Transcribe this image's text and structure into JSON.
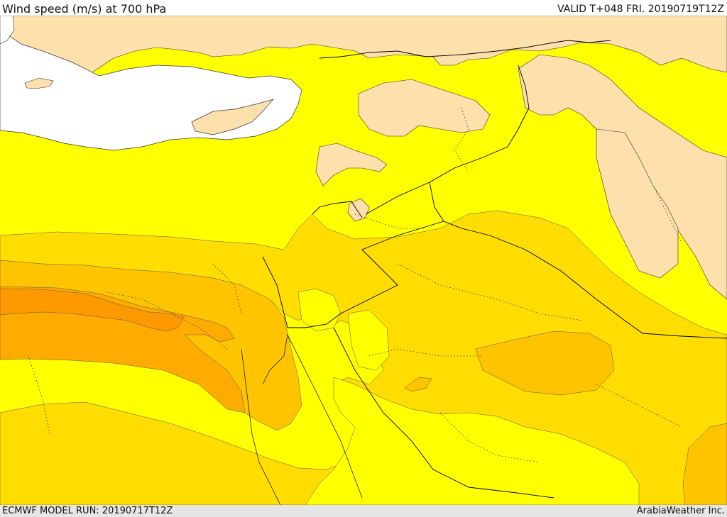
{
  "header": {
    "title": "Wind speed (m/s) at 700 hPa",
    "valid": "VALID T+048 FRI. 20190719T12Z"
  },
  "footer": {
    "model_run": "ECMWF MODEL RUN: 20190717T12Z",
    "credit": "ArabiaWeather Inc."
  },
  "map": {
    "variable": "wind speed",
    "level": "700 hPa",
    "colors": {
      "sea": "#ffffff",
      "land_low_wind": "#fde0ac",
      "band_1": "#ffff00",
      "band_2": "#ffdd00",
      "band_3": "#ffc400",
      "band_4": "#ffab00",
      "band_5": "#ff9900",
      "border": "#000000"
    }
  }
}
